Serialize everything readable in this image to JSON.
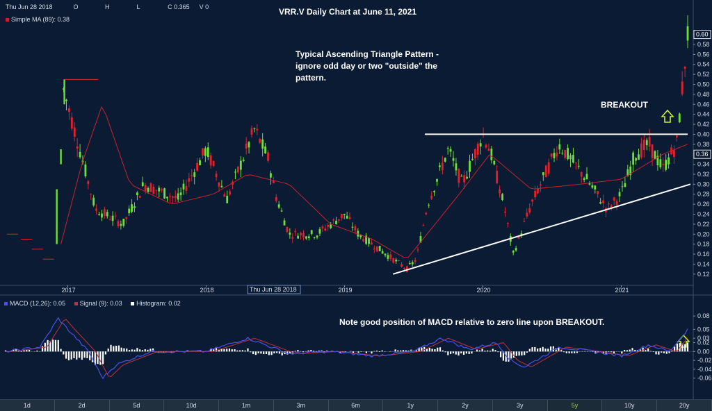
{
  "header": {
    "date": "Thu Jun 28 2018",
    "o_label": "O",
    "h_label": "H",
    "l_label": "L",
    "c_text": "C 0.365",
    "v_text": "V 0",
    "ma_legend": "Simple MA (89): 0.38",
    "crosshair_date": "Thu Jun 28 2018"
  },
  "colors": {
    "background": "#0a1b33",
    "up": "#6fe036",
    "down": "#e3202b",
    "ma": "#c8232a",
    "macd": "#4a52e8",
    "signal": "#c0323a",
    "trendline": "#ffffff",
    "arrow": "#c8f03a"
  },
  "chart_data": [
    {
      "type": "candlestick",
      "title": "VRR.V Daily Chart at June 11, 2021",
      "x_ticks": [
        "2017",
        "2018",
        "2019",
        "2020",
        "2021"
      ],
      "y_ticks": [
        "0.12",
        "0.14",
        "0.16",
        "0.18",
        "0.20",
        "0.22",
        "0.24",
        "0.26",
        "0.28",
        "0.30",
        "0.32",
        "0.34",
        "0.36",
        "0.38",
        "0.40",
        "0.42",
        "0.44",
        "0.46",
        "0.48",
        "0.50",
        "0.52",
        "0.54",
        "0.56",
        "0.58",
        "0.60"
      ],
      "ylim": [
        0.11,
        0.605
      ],
      "last_price_label": "0.36",
      "last_close_label": "0.60",
      "grid": false,
      "ma_label": "Simple MA (89)",
      "resistance": {
        "x": [
          2019.58,
          2021.48
        ],
        "y": [
          0.4,
          0.4
        ]
      },
      "support": {
        "x": [
          2019.35,
          2021.5
        ],
        "y": [
          0.12,
          0.3
        ]
      },
      "annotations": [
        "Typical Ascending Triangle Pattern -",
        "ignore odd day or two \"outside\" the",
        "pattern.",
        "BREAKOUT"
      ],
      "approx_close_path": {
        "x": [
          2016.55,
          2016.9,
          2016.93,
          2016.96,
          2017.2,
          2017.4,
          2017.55,
          2017.8,
          2018.0,
          2018.15,
          2018.35,
          2018.45,
          2018.5,
          2018.6,
          2018.8,
          2019.0,
          2019.1,
          2019.3,
          2019.45,
          2019.52,
          2019.6,
          2019.75,
          2019.85,
          2020.0,
          2020.05,
          2020.15,
          2020.22,
          2020.35,
          2020.55,
          2020.75,
          2020.9,
          2021.0,
          2021.1,
          2021.2,
          2021.3,
          2021.4,
          2021.48
        ],
        "y": [
          0.18,
          0.2,
          0.35,
          0.5,
          0.25,
          0.22,
          0.3,
          0.27,
          0.37,
          0.27,
          0.41,
          0.35,
          0.28,
          0.2,
          0.2,
          0.24,
          0.2,
          0.16,
          0.13,
          0.15,
          0.26,
          0.37,
          0.3,
          0.4,
          0.37,
          0.26,
          0.16,
          0.26,
          0.38,
          0.31,
          0.25,
          0.28,
          0.36,
          0.38,
          0.33,
          0.38,
          0.6
        ]
      },
      "approx_ma_path": {
        "x": [
          2016.95,
          2017.1,
          2017.25,
          2017.45,
          2017.75,
          2018.05,
          2018.3,
          2018.6,
          2018.9,
          2019.2,
          2019.45,
          2019.8,
          2020.05,
          2020.35,
          2020.7,
          2021.0,
          2021.3,
          2021.48
        ],
        "y": [
          0.18,
          0.34,
          0.46,
          0.3,
          0.26,
          0.28,
          0.32,
          0.3,
          0.22,
          0.19,
          0.15,
          0.27,
          0.36,
          0.29,
          0.3,
          0.31,
          0.36,
          0.38
        ]
      }
    },
    {
      "type": "line",
      "title": "Note good position of MACD relative to zero line upon BREAKOUT.",
      "series": [
        {
          "name": "MACD (12,26)",
          "last": "0.05"
        },
        {
          "name": "Signal (9)",
          "last": "0.03"
        },
        {
          "name": "Histogram",
          "last": "0.02"
        }
      ],
      "y_ticks": [
        "0.08",
        "0.05",
        "0.03",
        "0.02",
        "0.00",
        "-0.02",
        "-0.04",
        "-0.06"
      ],
      "ylim": [
        -0.07,
        0.085
      ],
      "approx_macd_path": {
        "x": [
          2016.55,
          2016.8,
          2016.93,
          2017.0,
          2017.15,
          2017.25,
          2017.35,
          2017.6,
          2018.0,
          2018.3,
          2018.6,
          2018.9,
          2019.2,
          2019.5,
          2019.7,
          2019.9,
          2020.1,
          2020.2,
          2020.3,
          2020.55,
          2020.8,
          2021.0,
          2021.2,
          2021.35,
          2021.48
        ],
        "y": [
          0.0,
          0.01,
          0.075,
          0.05,
          0.0,
          -0.06,
          -0.03,
          0.0,
          0.0,
          0.03,
          -0.005,
          0.0,
          -0.01,
          0.0,
          0.03,
          0.005,
          0.02,
          -0.02,
          -0.035,
          0.01,
          0.0,
          -0.01,
          0.015,
          0.0,
          0.05
        ]
      }
    }
  ],
  "timebar": {
    "buttons": [
      "1d",
      "2d",
      "5d",
      "10d",
      "1m",
      "3m",
      "6m",
      "1y",
      "2y",
      "3y",
      "5y",
      "10y",
      "20y"
    ],
    "active": "5y"
  }
}
